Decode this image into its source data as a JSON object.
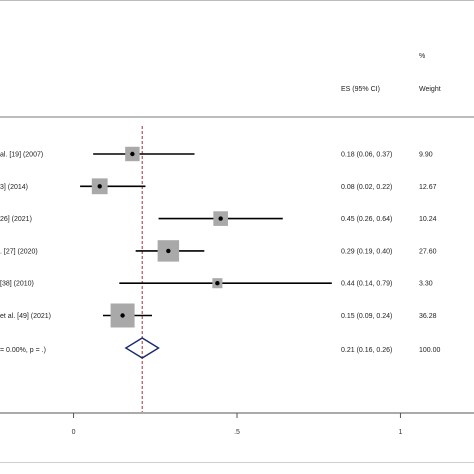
{
  "chart_data": {
    "type": "forest",
    "header": {
      "percent_label": "%",
      "es_label": "ES (95% CI)",
      "weight_label": "Weight"
    },
    "studies": [
      {
        "label": "al. [19] (2007)",
        "es": 0.18,
        "ci": [
          0.06,
          0.37
        ],
        "es_text": "0.18 (0.06, 0.37)",
        "weight_text": "9.90",
        "weight": 9.9
      },
      {
        "label": "3] (2014)",
        "es": 0.08,
        "ci": [
          0.02,
          0.22
        ],
        "es_text": "0.08 (0.02, 0.22)",
        "weight_text": "12.67",
        "weight": 12.67
      },
      {
        "label": "26] (2021)",
        "es": 0.45,
        "ci": [
          0.26,
          0.64
        ],
        "es_text": "0.45 (0.26, 0.64)",
        "weight_text": "10.24",
        "weight": 10.24
      },
      {
        "label": ". [27] (2020)",
        "es": 0.29,
        "ci": [
          0.19,
          0.4
        ],
        "es_text": "0.29 (0.19, 0.40)",
        "weight_text": "27.60",
        "weight": 27.6
      },
      {
        "label": "[38] (2010)",
        "es": 0.44,
        "ci": [
          0.14,
          0.79
        ],
        "es_text": "0.44 (0.14, 0.79)",
        "weight_text": "3.30",
        "weight": 3.3
      },
      {
        "label": "et al. [49] (2021)",
        "es": 0.15,
        "ci": [
          0.09,
          0.24
        ],
        "es_text": "0.15 (0.09, 0.24)",
        "weight_text": "36.28",
        "weight": 36.28
      }
    ],
    "overall": {
      "label": "= 0.00%, p = .)",
      "es": 0.21,
      "ci": [
        0.16,
        0.26
      ],
      "es_text": "0.21 (0.16, 0.26)",
      "weight_text": "100.00"
    },
    "x_axis": {
      "ticks": [
        0,
        0.5,
        1
      ],
      "tick_labels": [
        "0",
        ".5",
        "1"
      ],
      "range": [
        -0.225,
        1.225
      ]
    },
    "reference_line": 0.21,
    "colors": {
      "ci_line": "#000000",
      "weight_box": "#a9a9a9",
      "diamond": "#1a2a6c",
      "reference": "#a0303a",
      "axis": "#555555"
    }
  }
}
